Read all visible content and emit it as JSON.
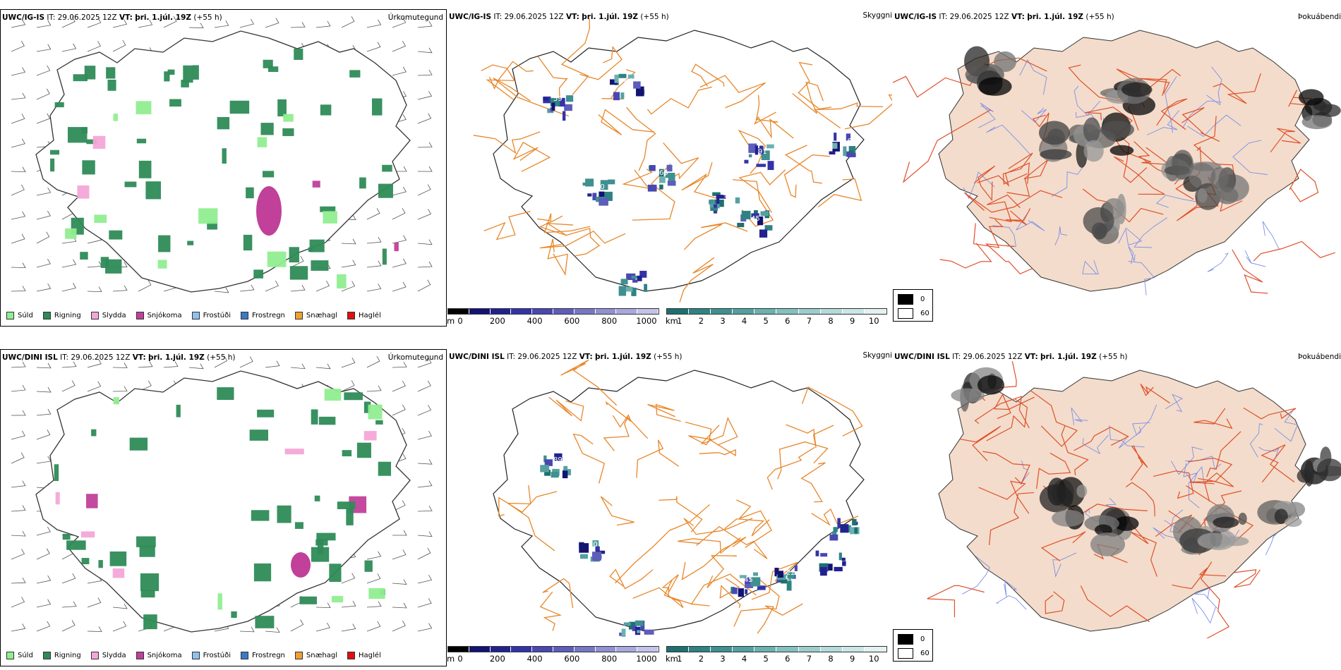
{
  "rows": [
    {
      "model": "UWC/IG-IS",
      "it_label": "IT:",
      "it_value": "29.06.2025 12Z",
      "vt_label": "VT:",
      "vt_value": "þri. 1.júl. 19Z",
      "lead": "(+55 h)"
    },
    {
      "model": "UWC/DINI ISL",
      "it_label": "IT:",
      "it_value": "29.06.2025 12Z",
      "vt_label": "VT:",
      "vt_value": "þri. 1.júl. 19Z",
      "lead": "(+55 h)"
    }
  ],
  "panel_titles": {
    "precip": "Úrkomutegund",
    "ceiling": "Skyggni",
    "fog": "Þokuábendi"
  },
  "precip_legend": [
    {
      "label": "Súld",
      "color": "#90ee90"
    },
    {
      "label": "Rigning",
      "color": "#2e8b57"
    },
    {
      "label": "Slydda",
      "color": "#f4a6d7"
    },
    {
      "label": "Snjókoma",
      "color": "#c0409a"
    },
    {
      "label": "Frostúði",
      "color": "#8ec1ee"
    },
    {
      "label": "Frostregn",
      "color": "#3a78c9"
    },
    {
      "label": "Snæhagl",
      "color": "#f0a030"
    },
    {
      "label": "Haglél",
      "color": "#e01010"
    }
  ],
  "ceiling_scale": {
    "unit": "m",
    "ticks": [
      "0",
      "200",
      "400",
      "600",
      "800",
      "1000"
    ],
    "colors": [
      "#000000",
      "#131372",
      "#22228f",
      "#3333a6",
      "#4848b0",
      "#5d5dba",
      "#7777c6",
      "#9090d2",
      "#a8a8de",
      "#c2c2ea"
    ]
  },
  "visibility_scale": {
    "unit": "km",
    "ticks": [
      "1",
      "2",
      "3",
      "4",
      "5",
      "6",
      "7",
      "8",
      "9",
      "10"
    ],
    "colors": [
      "#1f6f6f",
      "#2f8282",
      "#3f9090",
      "#55a0a0",
      "#6cb0b0",
      "#85c0c0",
      "#9ccdcd",
      "#b4dada",
      "#cbe6e6",
      "#e2f2f2"
    ]
  },
  "fog_legend": [
    {
      "label": "0",
      "color": "#000000"
    },
    {
      "label": "60",
      "color": "#ffffff"
    }
  ],
  "ceiling_labels_top": [
    "84",
    "70",
    "65",
    "30",
    "45",
    "59",
    "91",
    "16"
  ],
  "ceiling_labels_bottom": [
    "89",
    "70",
    "45",
    "22"
  ],
  "colors": {
    "roads": "#e8872a",
    "fog_land": "#f3dccb",
    "fog_roads": "#e0502a",
    "rivers": "#7c8fe8"
  }
}
